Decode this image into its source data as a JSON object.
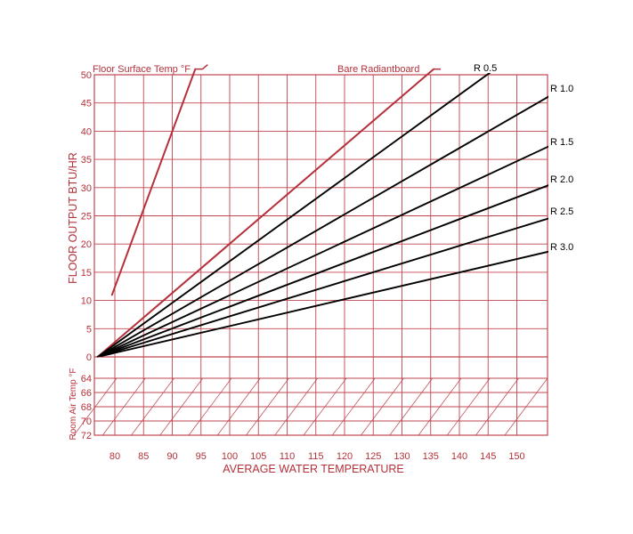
{
  "chart_data": {
    "type": "line",
    "xlabel": "AVERAGE WATER TEMPERATURE",
    "ylabel": "FLOOR OUTPUT BTU/HR",
    "room_axis_label": "Room Air Temp °F",
    "x_ticks": [
      80,
      85,
      90,
      95,
      100,
      105,
      110,
      115,
      120,
      125,
      130,
      135,
      140,
      145,
      150
    ],
    "y_ticks": [
      0,
      5,
      10,
      15,
      20,
      25,
      30,
      35,
      40,
      45,
      50
    ],
    "room_ticks": [
      64,
      66,
      68,
      70,
      72
    ],
    "xlim": [
      77,
      157
    ],
    "ylim": [
      0,
      50
    ],
    "grid": true,
    "series": [
      {
        "name": "Floor Surface Temp °F",
        "x": [
          79.5,
          94.0
        ],
        "y": [
          11,
          51
        ],
        "color": "#b5303a"
      },
      {
        "name": "Bare Radiantboard",
        "x": [
          77,
          135.5
        ],
        "y": [
          0,
          51
        ],
        "color": "#b5303a"
      },
      {
        "name": "R 0.5",
        "x": [
          77,
          145.5
        ],
        "y": [
          0,
          50.5
        ],
        "color": "#000000"
      },
      {
        "name": "R 1.0",
        "x": [
          77,
          157
        ],
        "y": [
          0,
          47
        ],
        "color": "#000000"
      },
      {
        "name": "R 1.5",
        "x": [
          77,
          157
        ],
        "y": [
          0,
          38
        ],
        "color": "#000000"
      },
      {
        "name": "R 2.0",
        "x": [
          77,
          157
        ],
        "y": [
          0,
          31
        ],
        "color": "#000000"
      },
      {
        "name": "R 2.5",
        "x": [
          77,
          157
        ],
        "y": [
          0,
          25
        ],
        "color": "#000000"
      },
      {
        "name": "R 3.0",
        "x": [
          77,
          157
        ],
        "y": [
          0,
          19
        ],
        "color": "#000000"
      }
    ],
    "colors": {
      "grid": "#c0454f",
      "text": "#b5303a",
      "black_line": "#000000"
    }
  }
}
